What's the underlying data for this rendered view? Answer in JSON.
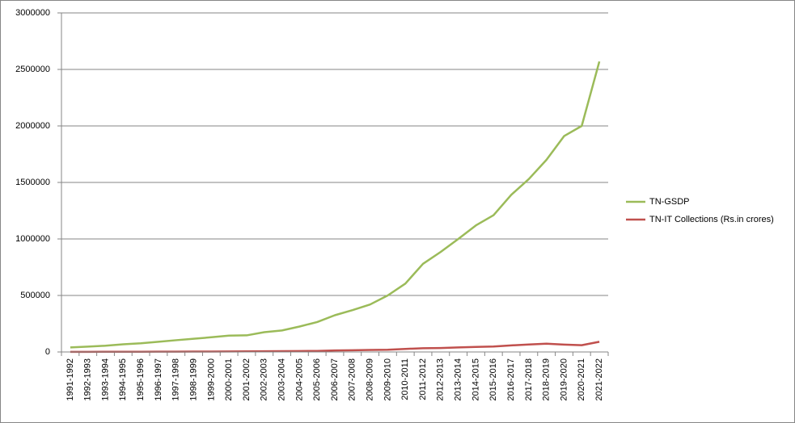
{
  "chart_data": {
    "type": "line",
    "categories": [
      "1991-1992",
      "1992-1993",
      "1993-1994",
      "1994-1995",
      "1995-1996",
      "1996-1997",
      "1997-1998",
      "1998-1999",
      "1999-2000",
      "2000-2001",
      "2001-2002",
      "2002-2003",
      "2003-2004",
      "2004-2005",
      "2005-2006",
      "2006-2007",
      "2007-2008",
      "2008-2009",
      "2009-2010",
      "2010-2011",
      "2011-2012",
      "2012-2013",
      "2013-2014",
      "2014-2015",
      "2015-2016",
      "2016-2017",
      "2017-2018",
      "2018-2019",
      "2019-2020",
      "2020-2021",
      "2021-2022"
    ],
    "series": [
      {
        "name": "TN-GSDP",
        "color": "#9bbb59",
        "values": [
          40000,
          47000,
          55000,
          68000,
          77000,
          90000,
          104000,
          117000,
          130000,
          145000,
          147000,
          175000,
          190000,
          225000,
          265000,
          325000,
          370000,
          420000,
          500000,
          605000,
          780000,
          885000,
          1000000,
          1120000,
          1210000,
          1390000,
          1530000,
          1700000,
          1910000,
          2000000,
          2570000
        ]
      },
      {
        "name": "TN-IT Collections (Rs.in crores)",
        "color": "#c0504d",
        "values": [
          1000,
          1200,
          1500,
          1800,
          2000,
          2500,
          3000,
          3500,
          4000,
          4500,
          5000,
          6000,
          7000,
          8000,
          9000,
          13000,
          15000,
          18000,
          20000,
          27000,
          33000,
          35000,
          40000,
          45000,
          48000,
          58000,
          66000,
          73000,
          65000,
          60000,
          90000
        ]
      }
    ],
    "ylim": [
      0,
      3000000
    ],
    "yticks": [
      0,
      500000,
      1000000,
      1500000,
      2000000,
      2500000,
      3000000
    ],
    "grid": true,
    "legend": "right"
  }
}
